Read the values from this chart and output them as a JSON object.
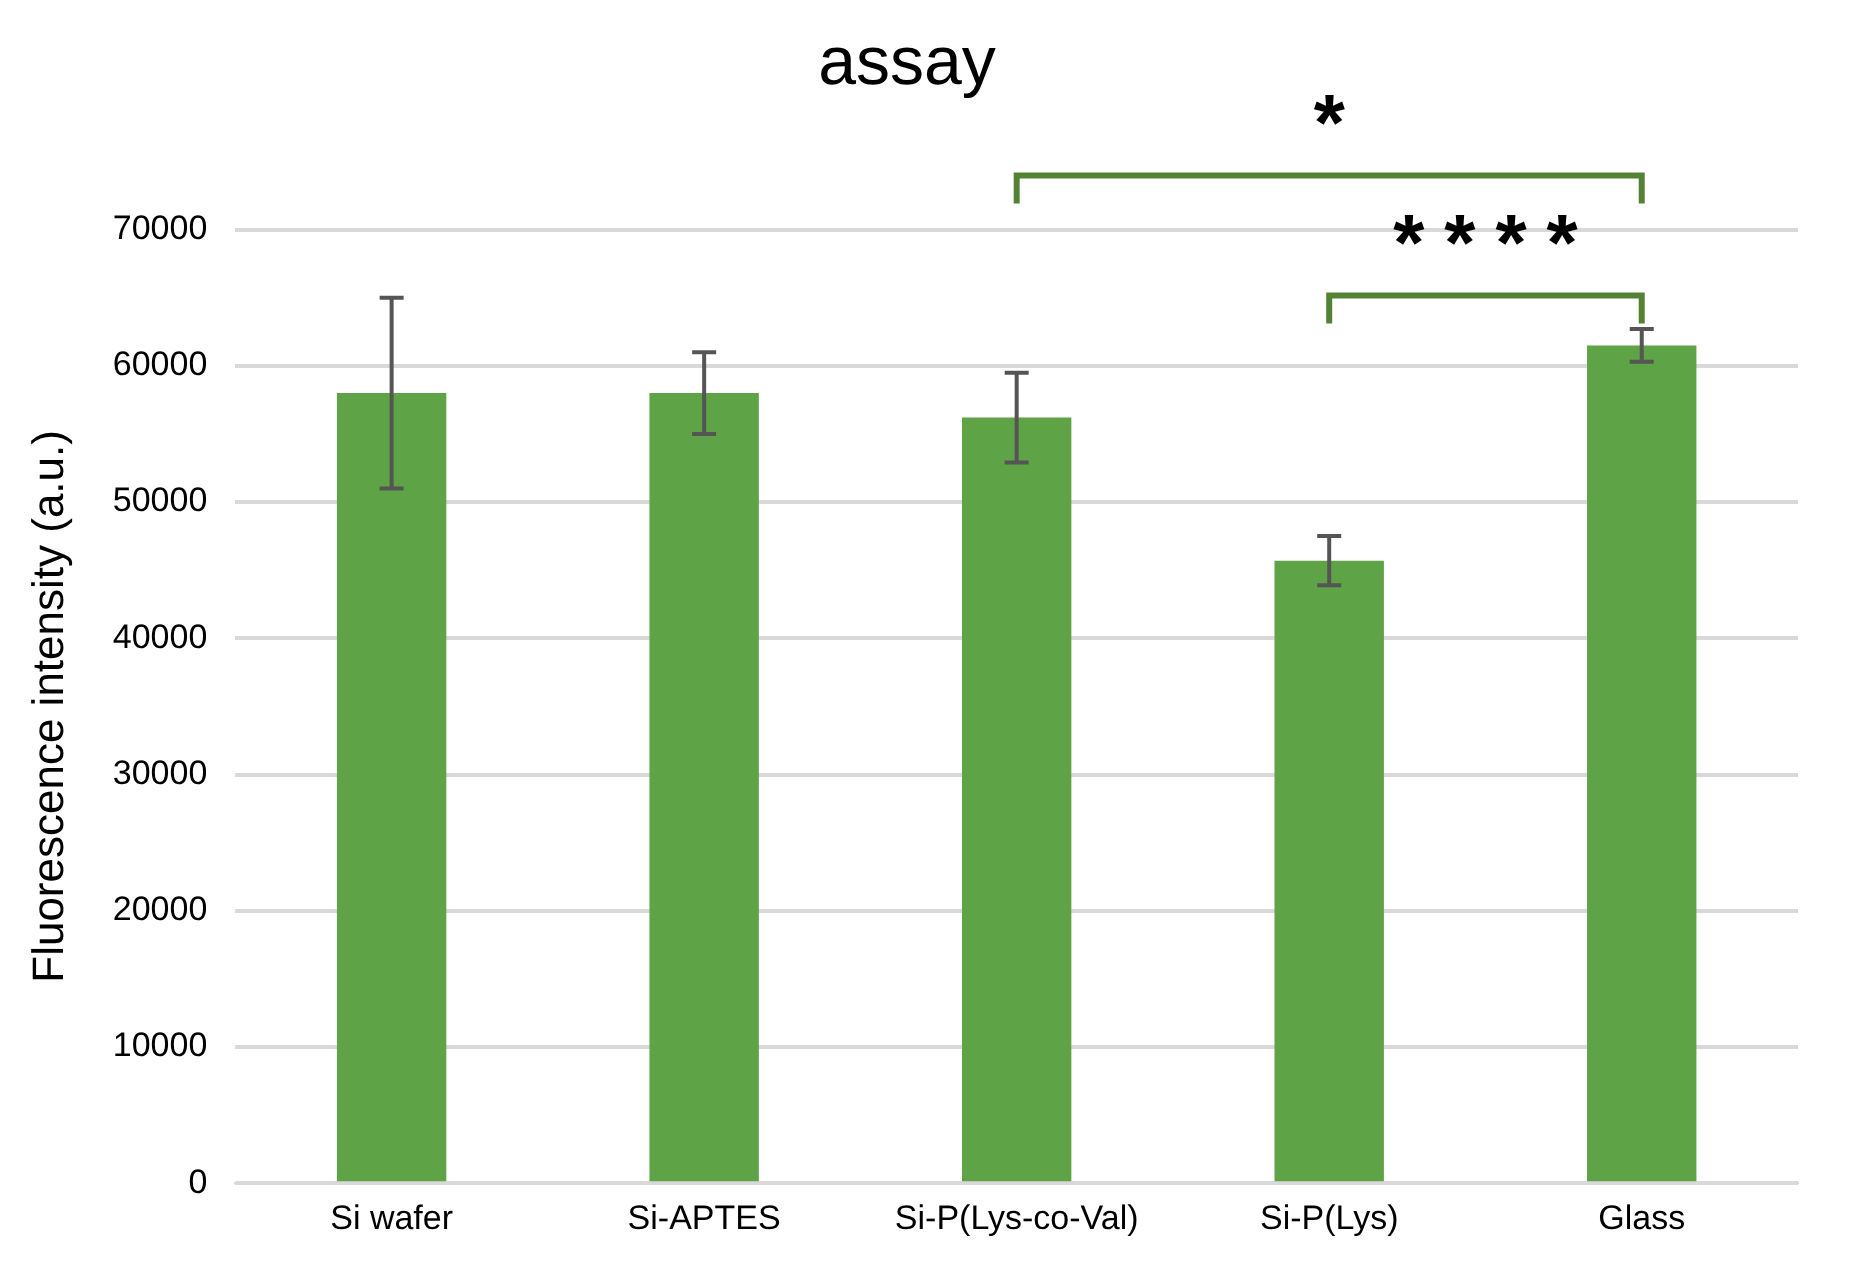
{
  "chart_data": {
    "type": "bar",
    "title": "assay",
    "ylabel": "Fluorescence intensity (a.u.)",
    "categories": [
      "Si wafer",
      "Si-APTES",
      "Si-P(Lys-co-Val)",
      "Si-P(Lys)",
      "Glass"
    ],
    "values": [
      58000,
      58000,
      56200,
      45700,
      61500
    ],
    "errors": [
      7000,
      3000,
      3300,
      1800,
      1200
    ],
    "color": "#5ea346",
    "ylim": [
      0,
      70000
    ],
    "yticks": [
      0,
      10000,
      20000,
      30000,
      40000,
      50000,
      60000,
      70000
    ],
    "grid": "y",
    "legend": false,
    "annotations": [
      "*",
      "****"
    ]
  }
}
